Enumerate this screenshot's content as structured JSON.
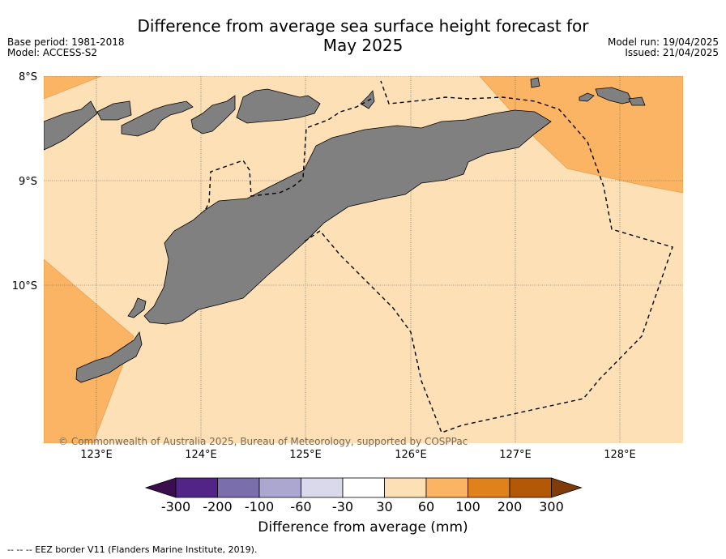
{
  "title_line1": "Difference from average sea surface height forecast for",
  "title_line2": "May 2025",
  "meta_left": [
    "Base period: 1981-2018",
    "Model: ACCESS-S2"
  ],
  "meta_right": [
    "Model run: 19/04/2025",
    "Issued: 21/04/2025"
  ],
  "lat_labels": [
    "8°S",
    "9°S",
    "10°S"
  ],
  "lon_labels": [
    "123°E",
    "124°E",
    "125°E",
    "126°E",
    "127°E",
    "128°E"
  ],
  "copyright": "© Commonwealth of Australia 2025, Bureau of Meteorology, supported by COSPPac",
  "colorbar": {
    "ticks": [
      "-300",
      "-200",
      "-100",
      "-60",
      "-30",
      "30",
      "60",
      "100",
      "200",
      "300"
    ],
    "colors": [
      "#3b0f4f",
      "#522488",
      "#7b6ead",
      "#aca7d0",
      "#d9d9eb",
      "#ffffff",
      "#fde0b6",
      "#fbb463",
      "#df821c",
      "#b35806",
      "#7f3b08"
    ],
    "label": "Difference from average (mm)"
  },
  "legend_note": "--  --  -- EEZ border V11 (Flanders Marine Institute, 2019).",
  "colors": {
    "ocean_30_60": "#fde0b6",
    "ocean_60_100": "#fbb463",
    "land": "#808080"
  }
}
